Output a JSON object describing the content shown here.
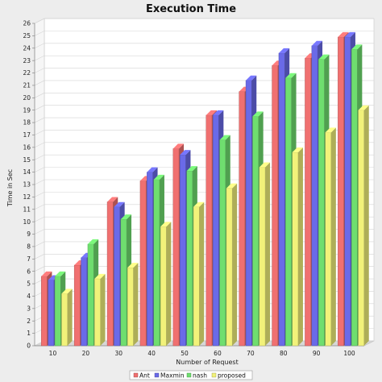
{
  "chart_data": {
    "type": "bar",
    "title": "Execution Time",
    "xlabel": "Number of Request",
    "ylabel": "Time in Sec",
    "categories": [
      "10",
      "20",
      "30",
      "40",
      "50",
      "60",
      "70",
      "80",
      "90",
      "100"
    ],
    "series": [
      {
        "name": "Ant",
        "color": "#f07070",
        "values": [
          5.6,
          6.5,
          11.6,
          13.3,
          15.9,
          18.6,
          20.5,
          22.6,
          23.2,
          24.9
        ]
      },
      {
        "name": "Maxmin",
        "color": "#6a6ae8",
        "values": [
          5.3,
          7.1,
          11.2,
          14.0,
          15.4,
          18.6,
          21.4,
          23.6,
          24.2,
          24.9
        ]
      },
      {
        "name": "nash",
        "color": "#6fde6f",
        "values": [
          5.6,
          8.2,
          10.2,
          13.4,
          14.1,
          16.6,
          18.5,
          21.6,
          23.1,
          23.9
        ]
      },
      {
        "name": "proposed",
        "color": "#f2f27a",
        "values": [
          4.2,
          5.4,
          6.3,
          9.6,
          11.2,
          12.7,
          14.4,
          15.6,
          17.2,
          19.0
        ]
      }
    ],
    "ylim": [
      0,
      26
    ],
    "yticks": [
      0,
      1,
      2,
      3,
      4,
      5,
      6,
      7,
      8,
      9,
      10,
      11,
      12,
      13,
      14,
      15,
      16,
      17,
      18,
      19,
      20,
      21,
      22,
      23,
      24,
      25,
      26
    ],
    "grid": true,
    "legend_position": "bottom"
  }
}
